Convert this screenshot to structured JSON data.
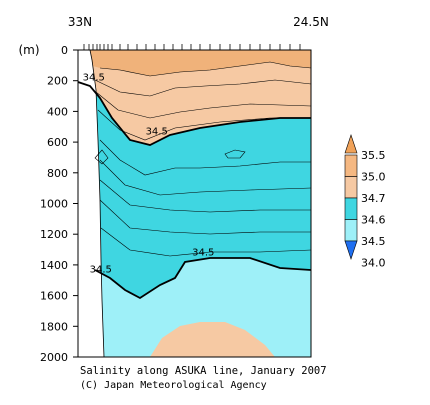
{
  "chart_data": {
    "type": "contour",
    "caption": "Salinity along ASUKA line, January 2007",
    "credit": "(C) Japan Meteorological Agency",
    "x_start_label": "33N",
    "x_end_label": "24.5N",
    "y_unit": "(m)",
    "y_ticks": [
      0,
      200,
      400,
      600,
      800,
      1000,
      1200,
      1400,
      1600,
      1800,
      2000
    ],
    "ylim": [
      0,
      2000
    ],
    "y_inverted": true,
    "colorbar": {
      "labels": [
        "35.5",
        "35.0",
        "34.7",
        "34.6",
        "34.5",
        "34.0"
      ],
      "colors": [
        "#f0a259",
        "#f5b882",
        "#f6c9a3",
        "#3fd6e1",
        "#9ef0f8",
        "#1f6ff0"
      ]
    },
    "contour_labels": [
      {
        "text": "34.5",
        "x": 0.02,
        "depth": 200
      },
      {
        "text": "34.5",
        "x": 0.29,
        "depth": 550
      },
      {
        "text": "34.5",
        "x": 0.49,
        "depth": 1340
      },
      {
        "text": "34.5",
        "x": 0.05,
        "depth": 1450
      }
    ],
    "fill_colors": {
      "high": "#f6c9a3",
      "high_dark": "#f0b27a",
      "mid": "#3fd6e1",
      "low": "#9ef0f8",
      "frame": "#000000"
    }
  }
}
